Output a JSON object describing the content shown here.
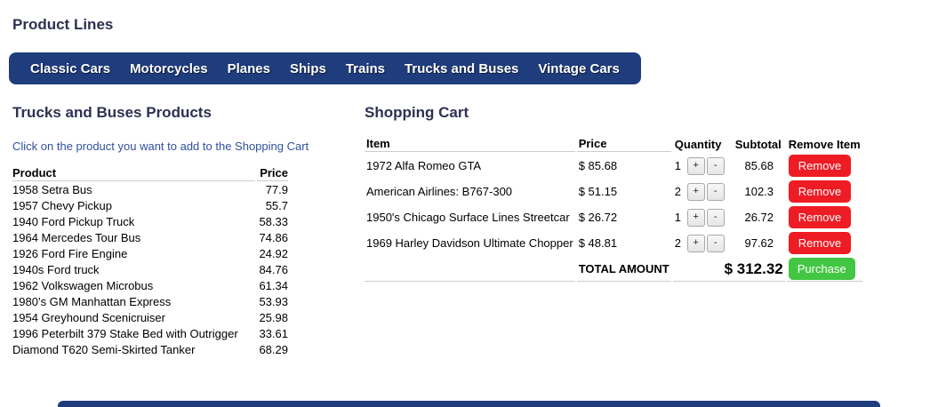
{
  "page": {
    "title": "Product Lines"
  },
  "nav": {
    "bg_color": "#1f3d7c",
    "items": [
      {
        "label": "Classic Cars"
      },
      {
        "label": "Motorcycles"
      },
      {
        "label": "Planes"
      },
      {
        "label": "Ships"
      },
      {
        "label": "Trains"
      },
      {
        "label": "Trucks and Buses"
      },
      {
        "label": "Vintage Cars"
      }
    ]
  },
  "products": {
    "heading": "Trucks and Buses Products",
    "instruction": "Click on the product you want to add to the Shopping Cart",
    "columns": {
      "product": "Product",
      "price": "Price"
    },
    "rows": [
      {
        "name": "1958 Setra Bus",
        "price": "77.9"
      },
      {
        "name": "1957 Chevy Pickup",
        "price": "55.7"
      },
      {
        "name": "1940 Ford Pickup Truck",
        "price": "58.33"
      },
      {
        "name": "1964 Mercedes Tour Bus",
        "price": "74.86"
      },
      {
        "name": "1926 Ford Fire Engine",
        "price": "24.92"
      },
      {
        "name": "1940s Ford truck",
        "price": "84.76"
      },
      {
        "name": "1962 Volkswagen Microbus",
        "price": "61.34"
      },
      {
        "name": "1980’s GM Manhattan Express",
        "price": "53.93"
      },
      {
        "name": "1954 Greyhound Scenicruiser",
        "price": "25.98"
      },
      {
        "name": "1996 Peterbilt 379 Stake Bed with Outrigger",
        "price": "33.61"
      },
      {
        "name": "Diamond T620 Semi-Skirted Tanker",
        "price": "68.29"
      }
    ]
  },
  "cart": {
    "heading": "Shopping Cart",
    "columns": {
      "item": "Item",
      "price": "Price",
      "quantity": "Quantity",
      "subtotal": "Subtotal",
      "remove": "Remove Item"
    },
    "rows": [
      {
        "item": "1972 Alfa Romeo GTA",
        "price": "$ 85.68",
        "quantity": "1",
        "subtotal": "85.68"
      },
      {
        "item": "American Airlines: B767-300",
        "price": "$ 51.15",
        "quantity": "2",
        "subtotal": "102.3"
      },
      {
        "item": "1950's Chicago Surface Lines Streetcar",
        "price": "$ 26.72",
        "quantity": "1",
        "subtotal": "26.72"
      },
      {
        "item": "1969 Harley Davidson Ultimate Chopper",
        "price": "$ 48.81",
        "quantity": "2",
        "subtotal": "97.62"
      }
    ],
    "buttons": {
      "increase": "+",
      "decrease": "-",
      "remove": "Remove",
      "purchase": "Purchase"
    },
    "total": {
      "label": "TOTAL AMOUNT",
      "value": "$ 312.32"
    }
  },
  "colors": {
    "nav_bg": "#1f3d7c",
    "heading_text": "#2e3151",
    "instruction_text": "#30509c",
    "remove_button_bg": "#ee1c24",
    "purchase_button_bg": "#43c643",
    "table_border": "#cccccc"
  }
}
